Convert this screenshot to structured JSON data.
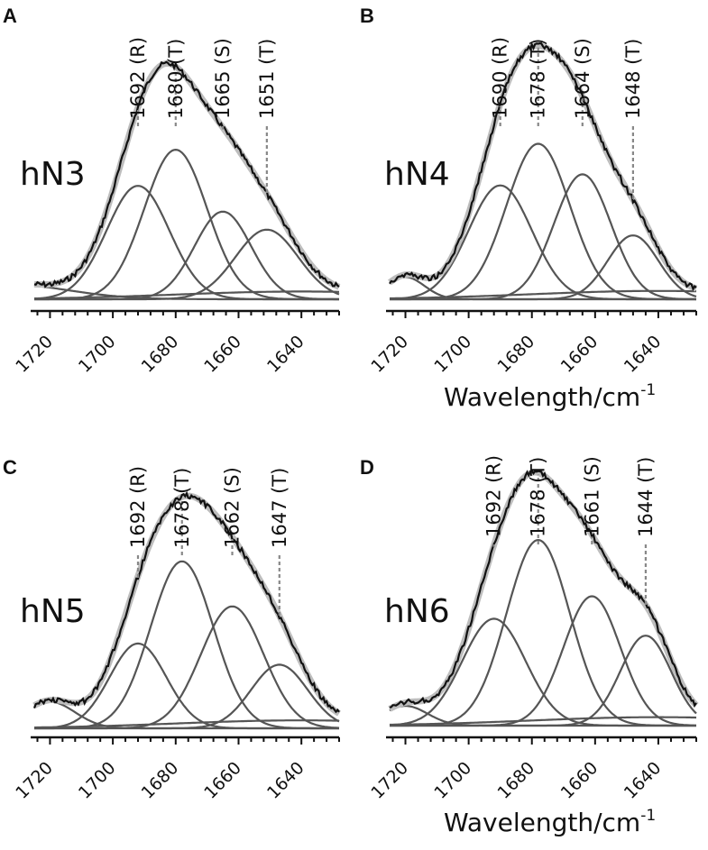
{
  "chart_data": [
    {
      "type": "line",
      "panel": "A",
      "sample": "hN3",
      "xlabel": "",
      "xlim": [
        1725,
        1628
      ],
      "xticks": [
        "1720",
        "1700",
        "1680",
        "1660",
        "1640"
      ],
      "peaks": [
        {
          "center": 1692,
          "label": "1692 (R)",
          "height": 0.44,
          "width": 10
        },
        {
          "center": 1680,
          "label": "1680 (T)",
          "height": 0.58,
          "width": 10
        },
        {
          "center": 1665,
          "label": "1665 (S)",
          "height": 0.34,
          "width": 9
        },
        {
          "center": 1651,
          "label": "1651 (T)",
          "height": 0.27,
          "width": 10
        }
      ],
      "baseline_components": [
        {
          "center": 1735,
          "height": 0.06,
          "width": 20
        },
        {
          "center": 1640,
          "height": 0.03,
          "width": 40
        }
      ]
    },
    {
      "type": "line",
      "panel": "B",
      "sample": "hN4",
      "xlabel": "Wavelength/cm",
      "xlabel_sup": "-1",
      "xlim": [
        1725,
        1628
      ],
      "xticks": [
        "1720",
        "1700",
        "1680",
        "1660",
        "1640"
      ],
      "peaks": [
        {
          "center": 1690,
          "label": "1690 (R)",
          "height": 0.41,
          "width": 10
        },
        {
          "center": 1678,
          "label": "1678 (T)",
          "height": 0.56,
          "width": 10
        },
        {
          "center": 1664,
          "label": "1664 (S)",
          "height": 0.45,
          "width": 9
        },
        {
          "center": 1648,
          "label": "1648 (T)",
          "height": 0.23,
          "width": 8
        }
      ],
      "baseline_components": [
        {
          "center": 1720,
          "height": 0.08,
          "width": 6
        },
        {
          "center": 1640,
          "height": 0.03,
          "width": 40
        }
      ]
    },
    {
      "type": "line",
      "panel": "C",
      "sample": "hN5",
      "xlabel": "",
      "xlim": [
        1725,
        1628
      ],
      "xticks": [
        "1720",
        "1700",
        "1680",
        "1660",
        "1640"
      ],
      "peaks": [
        {
          "center": 1692,
          "label": "1692 (R)",
          "height": 0.32,
          "width": 9
        },
        {
          "center": 1678,
          "label": "1678 (T)",
          "height": 0.63,
          "width": 10
        },
        {
          "center": 1662,
          "label": "1662 (S)",
          "height": 0.46,
          "width": 10
        },
        {
          "center": 1647,
          "label": "1647 (T)",
          "height": 0.24,
          "width": 9
        }
      ],
      "baseline_components": [
        {
          "center": 1720,
          "height": 0.1,
          "width": 8
        },
        {
          "center": 1640,
          "height": 0.03,
          "width": 40
        }
      ]
    },
    {
      "type": "line",
      "panel": "D",
      "sample": "hN6",
      "xlabel": "Wavelength/cm",
      "xlabel_sup": "-1",
      "xlim": [
        1725,
        1628
      ],
      "xticks": [
        "1720",
        "1700",
        "1680",
        "1660",
        "1640"
      ],
      "peaks": [
        {
          "center": 1692,
          "label": "1692 (R)",
          "height": 0.38,
          "width": 10
        },
        {
          "center": 1678,
          "label": "1678 (T)",
          "height": 0.66,
          "width": 10
        },
        {
          "center": 1661,
          "label": "1661 (S)",
          "height": 0.46,
          "width": 9
        },
        {
          "center": 1644,
          "label": "1644 (T)",
          "height": 0.32,
          "width": 8
        }
      ],
      "baseline_components": [
        {
          "center": 1720,
          "height": 0.07,
          "width": 7
        },
        {
          "center": 1640,
          "height": 0.03,
          "width": 40
        }
      ]
    }
  ],
  "colors": {
    "component": "#555555",
    "fit": "#bdbdbd",
    "data": "#111111",
    "guide": "#888888",
    "axis": "#111111"
  }
}
